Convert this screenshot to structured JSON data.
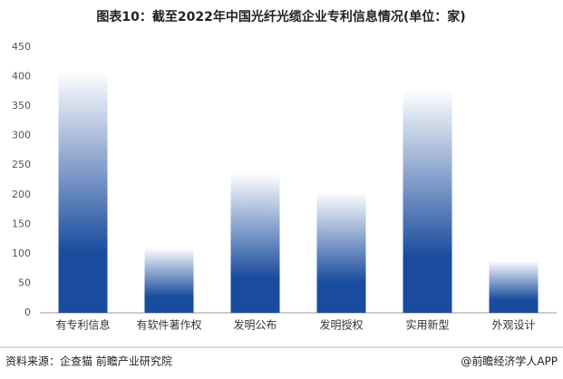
{
  "chart_data": {
    "type": "bar",
    "title": "图表10：截至2022年中国光纤光缆企业专利信息情况(单位：家)",
    "categories": [
      "有专利信息",
      "有软件著作权",
      "发明公布",
      "发明授权",
      "实用新型",
      "外观设计"
    ],
    "values": [
      410,
      110,
      237,
      205,
      378,
      88
    ],
    "color": "#1a4c9e",
    "ylim": [
      0,
      450
    ],
    "yticks": [
      0,
      50,
      100,
      150,
      200,
      250,
      300,
      350,
      400,
      450
    ],
    "grid": false,
    "source": "资料来源：企查猫 前瞻产业研究院",
    "credit": "@前瞻经济学人APP"
  }
}
